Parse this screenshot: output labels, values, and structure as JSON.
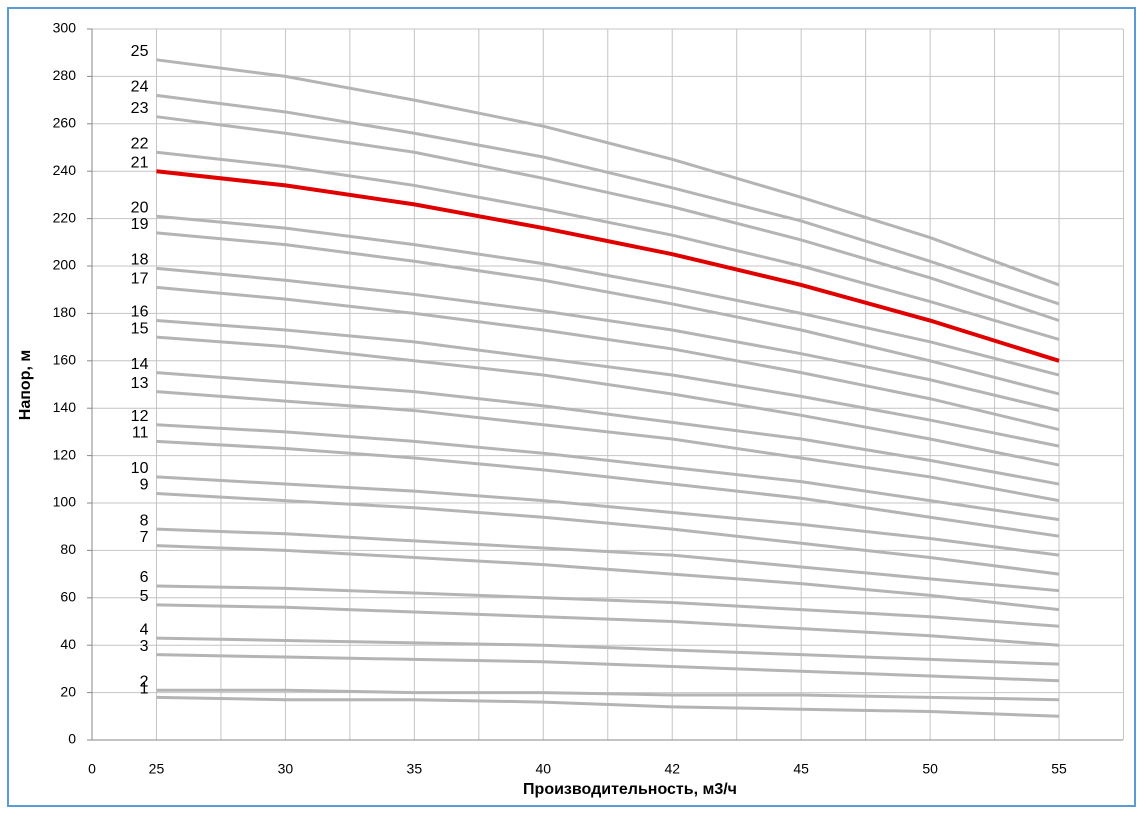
{
  "chart_data": {
    "type": "line",
    "x_label": "Производительность, м3/ч",
    "y_label": "Напор, м",
    "categories": [
      "0",
      "25",
      "30",
      "35",
      "40",
      "42",
      "45",
      "50",
      "55"
    ],
    "ylim": [
      0,
      300
    ],
    "yticks": [
      0,
      20,
      40,
      60,
      80,
      100,
      120,
      140,
      160,
      180,
      200,
      220,
      240,
      260,
      280,
      300
    ],
    "grid": true,
    "series": [
      {
        "name": "1",
        "color": "#b4b4b4",
        "values": [
          null,
          18,
          17,
          17,
          16,
          14,
          13,
          12,
          10
        ]
      },
      {
        "name": "2",
        "color": "#b4b4b4",
        "values": [
          null,
          21,
          21,
          20,
          20,
          19,
          19,
          18,
          17
        ]
      },
      {
        "name": "3",
        "color": "#b4b4b4",
        "values": [
          null,
          36,
          35,
          34,
          33,
          31,
          29,
          27,
          25
        ]
      },
      {
        "name": "4",
        "color": "#b4b4b4",
        "values": [
          null,
          43,
          42,
          41,
          40,
          38,
          36,
          34,
          32
        ]
      },
      {
        "name": "5",
        "color": "#b4b4b4",
        "values": [
          null,
          57,
          56,
          54,
          52,
          50,
          47,
          44,
          40
        ]
      },
      {
        "name": "6",
        "color": "#b4b4b4",
        "values": [
          null,
          65,
          64,
          62,
          60,
          58,
          55,
          52,
          48
        ]
      },
      {
        "name": "7",
        "color": "#b4b4b4",
        "values": [
          null,
          82,
          80,
          77,
          74,
          70,
          66,
          61,
          55
        ]
      },
      {
        "name": "8",
        "color": "#b4b4b4",
        "values": [
          null,
          89,
          87,
          84,
          81,
          78,
          73,
          68,
          63
        ]
      },
      {
        "name": "9",
        "color": "#b4b4b4",
        "values": [
          null,
          104,
          101,
          98,
          94,
          89,
          83,
          77,
          70
        ]
      },
      {
        "name": "10",
        "color": "#b4b4b4",
        "values": [
          null,
          111,
          108,
          105,
          101,
          96,
          91,
          85,
          78
        ]
      },
      {
        "name": "11",
        "color": "#b4b4b4",
        "values": [
          null,
          126,
          123,
          119,
          114,
          108,
          102,
          94,
          86
        ]
      },
      {
        "name": "12",
        "color": "#b4b4b4",
        "values": [
          null,
          133,
          130,
          126,
          121,
          115,
          109,
          101,
          93
        ]
      },
      {
        "name": "13",
        "color": "#b4b4b4",
        "values": [
          null,
          147,
          143,
          139,
          133,
          127,
          119,
          111,
          101
        ]
      },
      {
        "name": "14",
        "color": "#b4b4b4",
        "values": [
          null,
          155,
          151,
          147,
          141,
          134,
          127,
          118,
          108
        ]
      },
      {
        "name": "15",
        "color": "#b4b4b4",
        "values": [
          null,
          170,
          166,
          160,
          154,
          146,
          137,
          127,
          116
        ]
      },
      {
        "name": "16",
        "color": "#b4b4b4",
        "values": [
          null,
          177,
          173,
          168,
          161,
          154,
          145,
          135,
          124
        ]
      },
      {
        "name": "17",
        "color": "#b4b4b4",
        "values": [
          null,
          191,
          186,
          180,
          173,
          165,
          155,
          144,
          131
        ]
      },
      {
        "name": "18",
        "color": "#b4b4b4",
        "values": [
          null,
          199,
          194,
          188,
          181,
          173,
          163,
          152,
          139
        ]
      },
      {
        "name": "19",
        "color": "#b4b4b4",
        "values": [
          null,
          214,
          209,
          202,
          194,
          184,
          173,
          160,
          146
        ]
      },
      {
        "name": "20",
        "color": "#b4b4b4",
        "values": [
          null,
          221,
          216,
          209,
          201,
          191,
          180,
          168,
          154
        ]
      },
      {
        "name": "21",
        "color": "#e00000",
        "values": [
          null,
          240,
          234,
          226,
          216,
          205,
          192,
          177,
          160
        ]
      },
      {
        "name": "22",
        "color": "#b4b4b4",
        "values": [
          null,
          248,
          242,
          234,
          224,
          213,
          200,
          185,
          169
        ]
      },
      {
        "name": "23",
        "color": "#b4b4b4",
        "values": [
          null,
          263,
          256,
          248,
          237,
          225,
          211,
          195,
          177
        ]
      },
      {
        "name": "24",
        "color": "#b4b4b4",
        "values": [
          null,
          272,
          265,
          256,
          246,
          233,
          219,
          202,
          184
        ]
      },
      {
        "name": "25",
        "color": "#b4b4b4",
        "values": [
          null,
          287,
          280,
          270,
          259,
          245,
          229,
          212,
          192
        ]
      }
    ]
  }
}
